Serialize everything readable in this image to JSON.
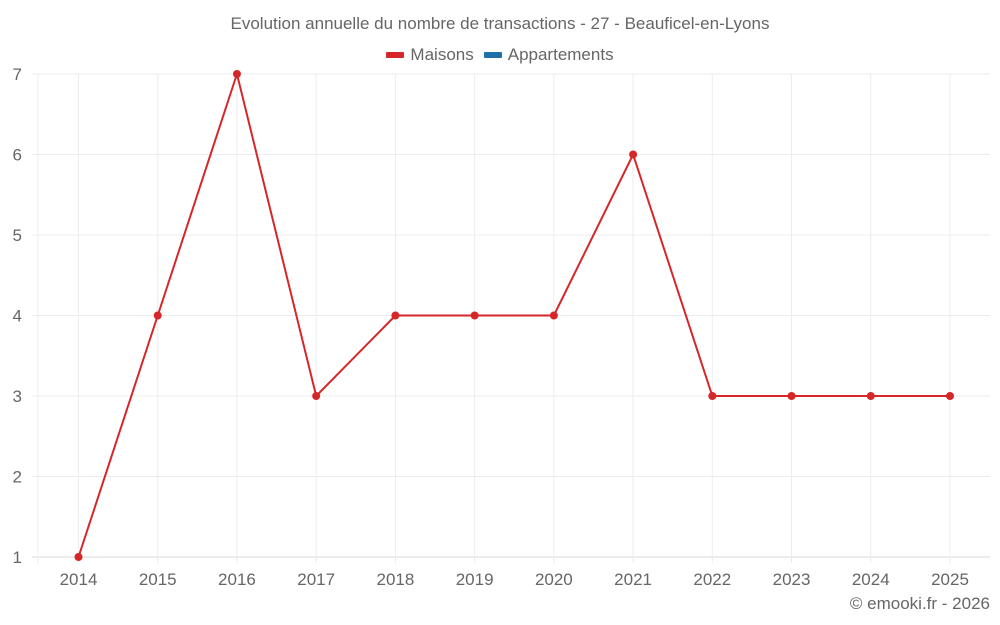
{
  "chart_data": {
    "type": "line",
    "title": "Evolution annuelle du nombre de transactions - 27 - Beauficel-en-Lyons",
    "categories": [
      "2014",
      "2015",
      "2016",
      "2017",
      "2018",
      "2019",
      "2020",
      "2021",
      "2022",
      "2023",
      "2024",
      "2025"
    ],
    "series": [
      {
        "name": "Maisons",
        "color": "#d62728",
        "values": [
          1,
          4,
          7,
          3,
          4,
          4,
          4,
          6,
          3,
          3,
          3,
          3
        ]
      },
      {
        "name": "Appartements",
        "color": "#1f6fa8",
        "values": []
      }
    ],
    "xlabel": "",
    "ylabel": "",
    "ylim": [
      1,
      7
    ],
    "yticks": [
      1,
      2,
      3,
      4,
      5,
      6,
      7
    ],
    "grid": true,
    "legend_position": "top"
  },
  "title": "Evolution annuelle du nombre de transactions - 27 - Beauficel-en-Lyons",
  "legend": [
    {
      "label": "Maisons",
      "color": "#d62728"
    },
    {
      "label": "Appartements",
      "color": "#1f6fa8"
    }
  ],
  "credit": "© emooki.fr - 2026"
}
